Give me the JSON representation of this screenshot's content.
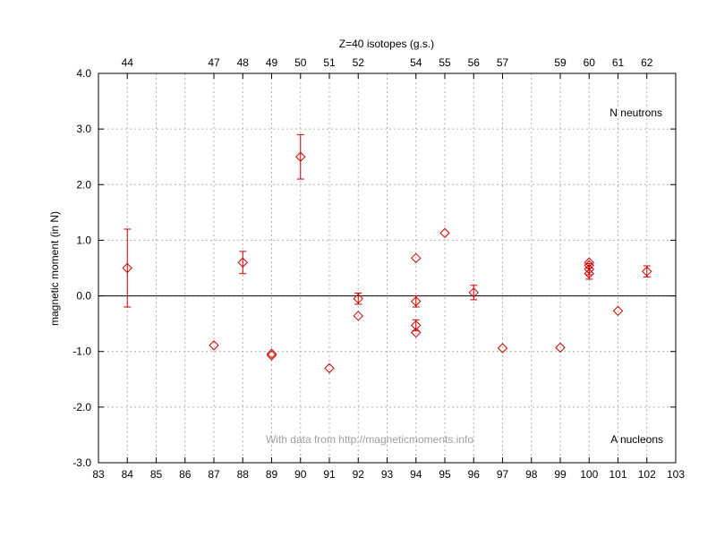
{
  "chart_data": {
    "type": "scatter",
    "title": "Z=40 isotopes  (g.s.)",
    "xlabel": "",
    "ylabel": "magnetic moment (in  N)",
    "xlim": [
      83,
      103
    ],
    "ylim": [
      -3.0,
      4.0
    ],
    "x_ticks": [
      83,
      84,
      85,
      86,
      87,
      88,
      89,
      90,
      91,
      92,
      93,
      94,
      95,
      96,
      97,
      98,
      99,
      100,
      101,
      102,
      103
    ],
    "y_ticks": [
      -3.0,
      -2.0,
      -1.0,
      0.0,
      1.0,
      2.0,
      3.0,
      4.0
    ],
    "y_tick_labels": [
      "-3.0",
      "-2.0",
      "-1.0",
      "0.0",
      "1.0",
      "2.0",
      "3.0",
      "4.0"
    ],
    "top_axis": {
      "positions": [
        84,
        87,
        88,
        89,
        90,
        91,
        92,
        94,
        95,
        96,
        97,
        99,
        100,
        101,
        102
      ],
      "labels": [
        "44",
        "47",
        "48",
        "49",
        "50",
        "51",
        "52",
        "54",
        "55",
        "56",
        "57",
        "59",
        "60",
        "61",
        "62"
      ]
    },
    "grid": true,
    "annotations": {
      "top_right": "N neutrons",
      "bottom_right": "A nucleons",
      "watermark": "With data from http://magneticmoments.info"
    },
    "marker_color": "#cc0000",
    "points": [
      {
        "x": 84,
        "y": 0.5,
        "err": 0.7
      },
      {
        "x": 87,
        "y": -0.89,
        "err": 0
      },
      {
        "x": 88,
        "y": 0.6,
        "err": 0.2
      },
      {
        "x": 89,
        "y": -1.04,
        "err": 0
      },
      {
        "x": 89,
        "y": -1.07,
        "err": 0
      },
      {
        "x": 90,
        "y": 2.5,
        "err": 0.4
      },
      {
        "x": 91,
        "y": -1.3,
        "err": 0
      },
      {
        "x": 92,
        "y": -0.05,
        "err": 0.1
      },
      {
        "x": 92,
        "y": -0.36,
        "err": 0
      },
      {
        "x": 94,
        "y": 0.68,
        "err": 0
      },
      {
        "x": 94,
        "y": -0.1,
        "err": 0.1
      },
      {
        "x": 94,
        "y": -0.53,
        "err": 0.1
      },
      {
        "x": 94,
        "y": -0.66,
        "err": 0
      },
      {
        "x": 95,
        "y": 1.13,
        "err": 0
      },
      {
        "x": 96,
        "y": 0.06,
        "err": 0.13
      },
      {
        "x": 97,
        "y": -0.94,
        "err": 0
      },
      {
        "x": 99,
        "y": -0.93,
        "err": 0
      },
      {
        "x": 100,
        "y": 0.6,
        "err": 0
      },
      {
        "x": 100,
        "y": 0.55,
        "err": 0
      },
      {
        "x": 100,
        "y": 0.48,
        "err": 0.1
      },
      {
        "x": 100,
        "y": 0.4,
        "err": 0.1
      },
      {
        "x": 101,
        "y": -0.27,
        "err": 0
      },
      {
        "x": 102,
        "y": 0.44,
        "err": 0.1
      }
    ]
  }
}
